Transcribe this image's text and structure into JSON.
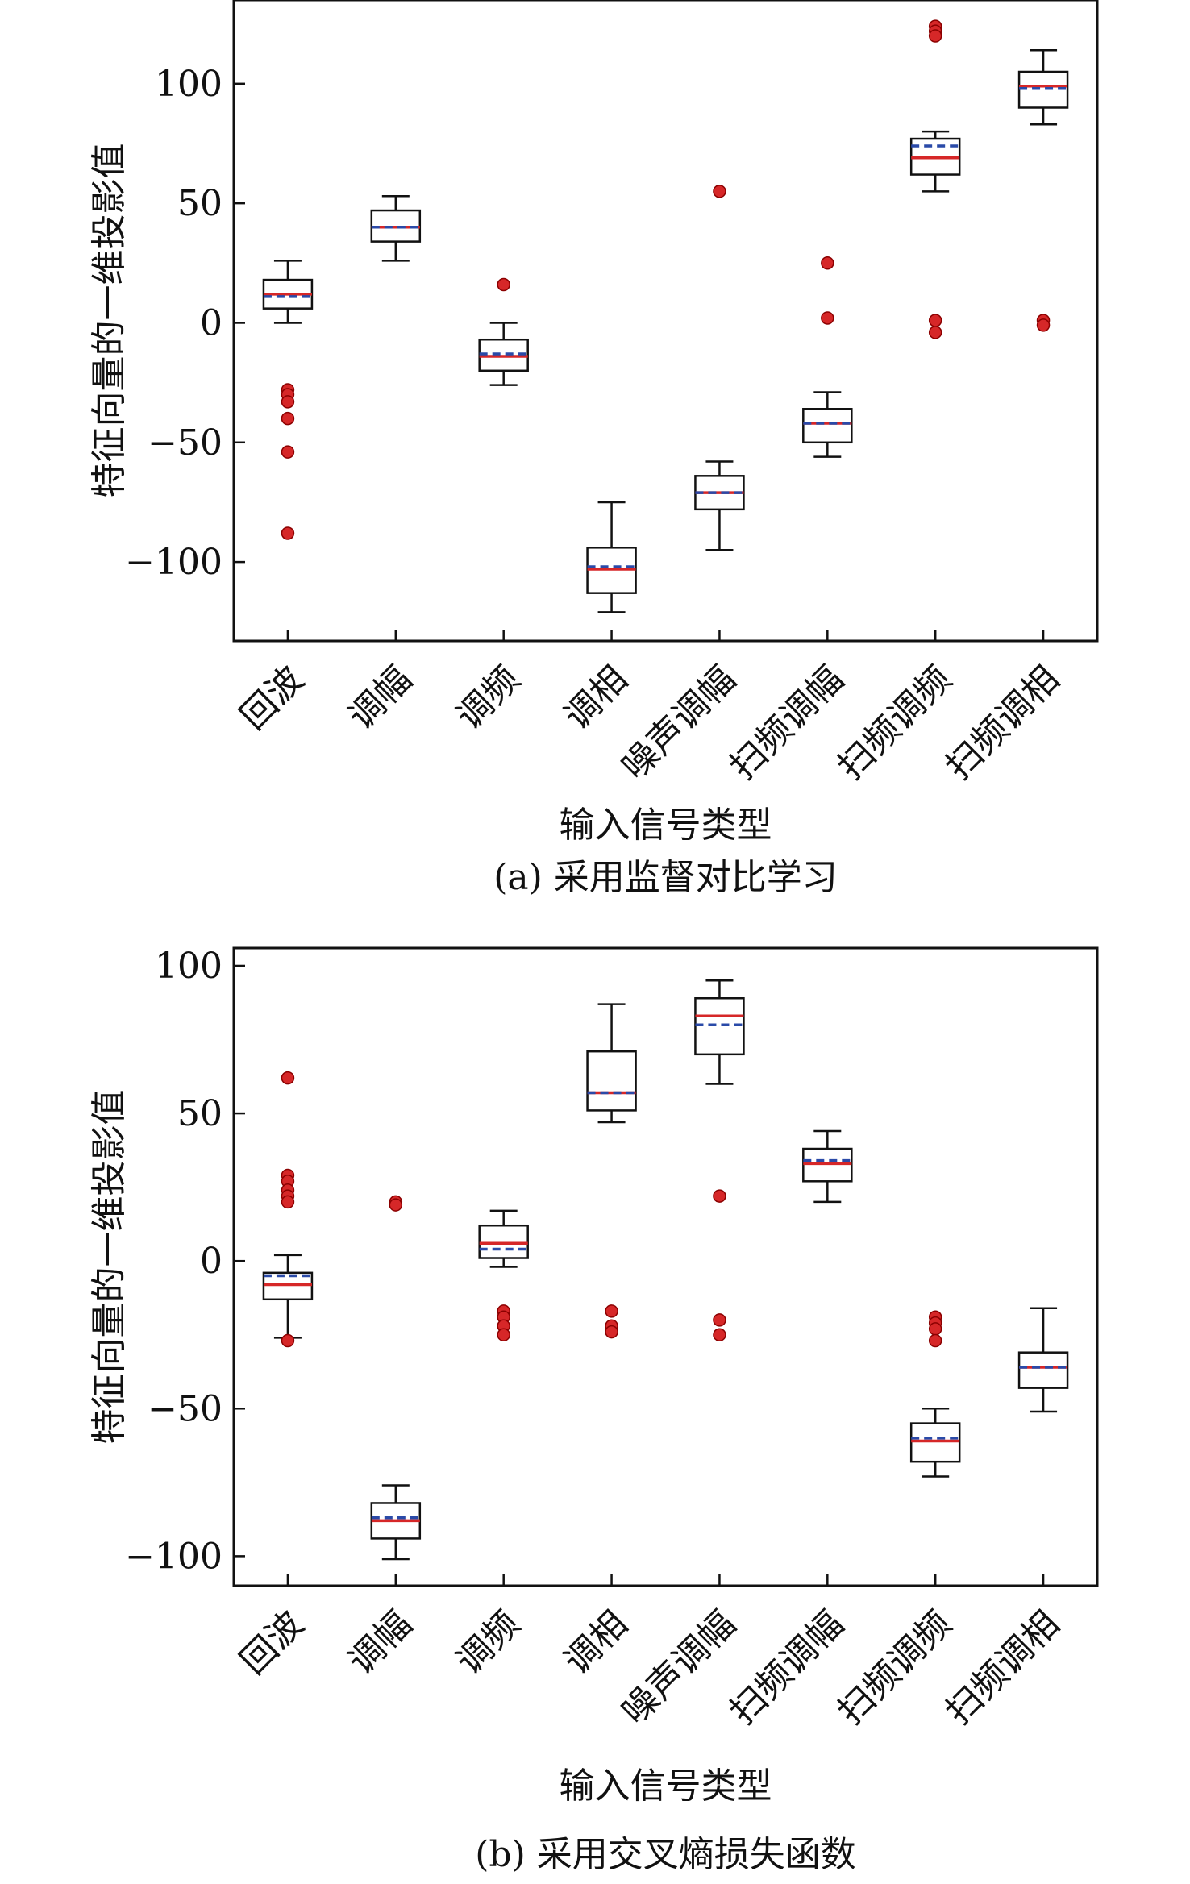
{
  "chart_data": [
    {
      "type": "box",
      "caption": "(a) 采用监督对比学习",
      "xlabel": "输入信号类型",
      "ylabel": "特征向量的一维投影值",
      "ylim": [
        -133,
        135
      ],
      "yticks": [
        100,
        50,
        0,
        -50,
        -100
      ],
      "yticklabels": [
        "100",
        "50",
        "0",
        "−50",
        "−100"
      ],
      "categories": [
        "回波",
        "调幅",
        "调频",
        "调相",
        "噪声调幅",
        "扫频调幅",
        "扫频调频",
        "扫频调相"
      ],
      "boxes": [
        {
          "whisker_low": 0,
          "q1": 6,
          "median": 12,
          "mean": 11,
          "q3": 18,
          "whisker_high": 26,
          "outliers": [
            -28,
            -30,
            -33,
            -40,
            -54,
            -88
          ]
        },
        {
          "whisker_low": 26,
          "q1": 34,
          "median": 40,
          "mean": 40,
          "q3": 47,
          "whisker_high": 53,
          "outliers": []
        },
        {
          "whisker_low": -26,
          "q1": -20,
          "median": -14,
          "mean": -13,
          "q3": -7,
          "whisker_high": 0,
          "outliers": [
            16
          ]
        },
        {
          "whisker_low": -121,
          "q1": -113,
          "median": -103,
          "mean": -102,
          "q3": -94,
          "whisker_high": -75,
          "outliers": []
        },
        {
          "whisker_low": -95,
          "q1": -78,
          "median": -71,
          "mean": -71,
          "q3": -64,
          "whisker_high": -58,
          "outliers": [
            55
          ]
        },
        {
          "whisker_low": -56,
          "q1": -50,
          "median": -42,
          "mean": -42,
          "q3": -36,
          "whisker_high": -29,
          "outliers": [
            25,
            2
          ]
        },
        {
          "whisker_low": 55,
          "q1": 62,
          "median": 69,
          "mean": 74,
          "q3": 77,
          "whisker_high": 80,
          "outliers": [
            124,
            122,
            120,
            1,
            -4
          ]
        },
        {
          "whisker_low": 83,
          "q1": 90,
          "median": 99,
          "mean": 98,
          "q3": 105,
          "whisker_high": 114,
          "outliers": [
            1,
            -1
          ]
        }
      ]
    },
    {
      "type": "box",
      "caption": "(b) 采用交叉熵损失函数",
      "xlabel": "输入信号类型",
      "ylabel": "特征向量的一维投影值",
      "ylim": [
        -110,
        106
      ],
      "yticks": [
        100,
        50,
        0,
        -50,
        -100
      ],
      "yticklabels": [
        "100",
        "50",
        "0",
        "−50",
        "−100"
      ],
      "categories": [
        "回波",
        "调幅",
        "调频",
        "调相",
        "噪声调幅",
        "扫频调幅",
        "扫频调频",
        "扫频调相"
      ],
      "boxes": [
        {
          "whisker_low": -26,
          "q1": -13,
          "median": -8,
          "mean": -5,
          "q3": -4,
          "whisker_high": 2,
          "outliers": [
            62,
            29,
            27,
            24,
            22,
            20,
            -27
          ]
        },
        {
          "whisker_low": -101,
          "q1": -94,
          "median": -88,
          "mean": -87,
          "q3": -82,
          "whisker_high": -76,
          "outliers": [
            20,
            19
          ]
        },
        {
          "whisker_low": -2,
          "q1": 1,
          "median": 6,
          "mean": 4,
          "q3": 12,
          "whisker_high": 17,
          "outliers": [
            -17,
            -19,
            -22,
            -25
          ]
        },
        {
          "whisker_low": 47,
          "q1": 51,
          "median": 57,
          "mean": 57,
          "q3": 71,
          "whisker_high": 87,
          "outliers": [
            -17,
            -22,
            -24
          ]
        },
        {
          "whisker_low": 60,
          "q1": 70,
          "median": 83,
          "mean": 80,
          "q3": 89,
          "whisker_high": 95,
          "outliers": [
            22,
            -20,
            -25
          ]
        },
        {
          "whisker_low": 20,
          "q1": 27,
          "median": 33,
          "mean": 34,
          "q3": 38,
          "whisker_high": 44,
          "outliers": []
        },
        {
          "whisker_low": -73,
          "q1": -68,
          "median": -61,
          "mean": -60,
          "q3": -55,
          "whisker_high": -50,
          "outliers": [
            -19,
            -21,
            -23,
            -27
          ]
        },
        {
          "whisker_low": -51,
          "q1": -43,
          "median": -36,
          "mean": -36,
          "q3": -31,
          "whisker_high": -16,
          "outliers": []
        }
      ]
    }
  ],
  "colors": {
    "median": "#d62728",
    "mean": "#2a4aa8",
    "outlier_fill": "#d62728",
    "outlier_edge": "#8b0000",
    "box_edge": "#111111"
  }
}
